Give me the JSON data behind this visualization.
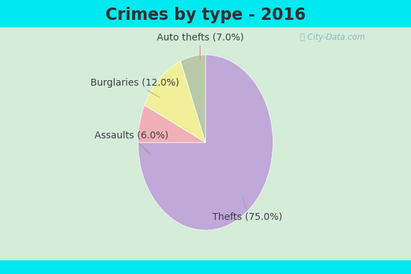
{
  "title": "Crimes by type - 2016",
  "labels": [
    "Thefts",
    "Auto thefts",
    "Burglaries",
    "Assaults"
  ],
  "values": [
    75.0,
    7.0,
    12.0,
    6.0
  ],
  "colors": [
    "#c0a8d8",
    "#f0b0b8",
    "#f0f09a",
    "#b8c8a8"
  ],
  "label_texts": [
    "Thefts (75.0%)",
    "Auto thefts (7.0%)",
    "Burglaries (12.0%)",
    "Assaults (6.0%)"
  ],
  "background_cyan": "#00e8f0",
  "background_main": "#d4ecd8",
  "title_fontsize": 17,
  "label_fontsize": 10,
  "title_color": "#303030",
  "label_color": "#404040"
}
